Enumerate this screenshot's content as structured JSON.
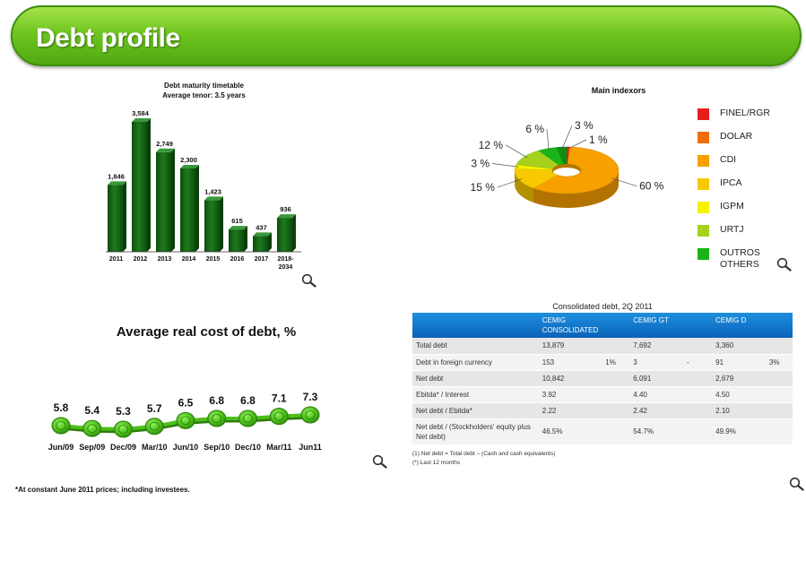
{
  "header": {
    "title": "Debt profile"
  },
  "maturity": {
    "title_line1": "Debt maturity timetable",
    "title_line2": "Average tenor: 3.5 years"
  },
  "indexors": {
    "title": "Main indexors"
  },
  "avg_cost": {
    "title": "Average real cost of debt, %",
    "footnote": "*At constant June 2011 prices; including investees."
  },
  "table": {
    "title": "Consolidated debt, 2Q 2011",
    "headers": [
      "",
      "CEMIG CONSOLIDATED",
      "",
      "CEMIG GT",
      "",
      "CEMIG D",
      ""
    ],
    "rows": [
      [
        "Total debt",
        "13,879",
        "",
        "7,692",
        "",
        "3,360",
        ""
      ],
      [
        "Debt in foreign currency",
        "153",
        "1%",
        "3",
        "-",
        "91",
        "3%"
      ],
      [
        "Net debt",
        "10,842",
        "",
        "6,091",
        "",
        "2,679",
        ""
      ],
      [
        "Ebitda* / Interest",
        "3.92",
        "",
        "4.40",
        "",
        "4.50",
        ""
      ],
      [
        "Net debt / Ebitda*",
        "2.22",
        "",
        "2.42",
        "",
        "2.10",
        ""
      ],
      [
        "Net debt / (Stockholders' equity plus Net debt)",
        "46.5%",
        "",
        "54.7%",
        "",
        "49.9%",
        ""
      ]
    ],
    "footnote1": "(1) Net debt = Total debt – (Cash and cash equivalents)",
    "footnote2": "(*) Last 12 months"
  },
  "icons": {
    "zoom": "magnifier-icon"
  },
  "chart_data": [
    {
      "type": "bar",
      "title": "Debt maturity timetable",
      "subtitle": "Average tenor: 3.5 years",
      "categories": [
        "2011",
        "2012",
        "2013",
        "2014",
        "2015",
        "2016",
        "2017",
        "2018-2034"
      ],
      "values": [
        1846,
        3584,
        2749,
        2300,
        1423,
        615,
        437,
        936
      ],
      "value_labels": [
        "1,846",
        "3,584",
        "2,749",
        "2,300",
        "1,423",
        "615",
        "437",
        "936"
      ],
      "ylim": [
        0,
        3584
      ],
      "color": "#1f7a1f",
      "grid": false
    },
    {
      "type": "pie",
      "title": "Main indexors",
      "style": "3d-donut",
      "slices": [
        {
          "name": "FINEL/RGR",
          "value": 1,
          "label": "1 %",
          "color": "#e81c1c"
        },
        {
          "name": "DOLAR",
          "value": 0,
          "label": "",
          "color": "#f26c0c"
        },
        {
          "name": "CDI",
          "value": 60,
          "label": "60 %",
          "color": "#f7a000"
        },
        {
          "name": "IPCA",
          "value": 15,
          "label": "15 %",
          "color": "#f8c800"
        },
        {
          "name": "IGPM",
          "value": 3,
          "label": "3 %",
          "color": "#f7f200"
        },
        {
          "name": "URTJ",
          "value": 12,
          "label": "12 %",
          "color": "#a6d21d"
        },
        {
          "name": "OUTROS\nOTHERS",
          "value": 6,
          "label": "6 %",
          "color": "#18b418"
        },
        {
          "name": "",
          "value": 3,
          "label": "3 %",
          "color": "#0e8e0e"
        }
      ],
      "legend": [
        {
          "name": "FINEL/RGR",
          "color": "#e81c1c"
        },
        {
          "name": "DOLAR",
          "color": "#f26c0c"
        },
        {
          "name": "CDI",
          "color": "#f7a000"
        },
        {
          "name": "IPCA",
          "color": "#f8c800"
        },
        {
          "name": "IGPM",
          "color": "#f7f200"
        },
        {
          "name": "URTJ",
          "color": "#a6d21d"
        },
        {
          "name": "OUTROS\nOTHERS",
          "color": "#18b418"
        }
      ],
      "legend_position": "right"
    },
    {
      "type": "line",
      "title": "Average real cost of debt, %",
      "categories": [
        "Jun/09",
        "Sep/09",
        "Dec/09",
        "Mar/10",
        "Jun/10",
        "Sep/10",
        "Dec/10",
        "Mar/11",
        "Jun11"
      ],
      "values": [
        5.8,
        5.4,
        5.3,
        5.7,
        6.5,
        6.8,
        6.8,
        7.1,
        7.3
      ],
      "value_labels": [
        "5.8",
        "5.4",
        "5.3",
        "5.7",
        "6.5",
        "6.8",
        "6.8",
        "7.1",
        "7.3"
      ],
      "color": "#4cbf1a",
      "grid": false
    }
  ]
}
